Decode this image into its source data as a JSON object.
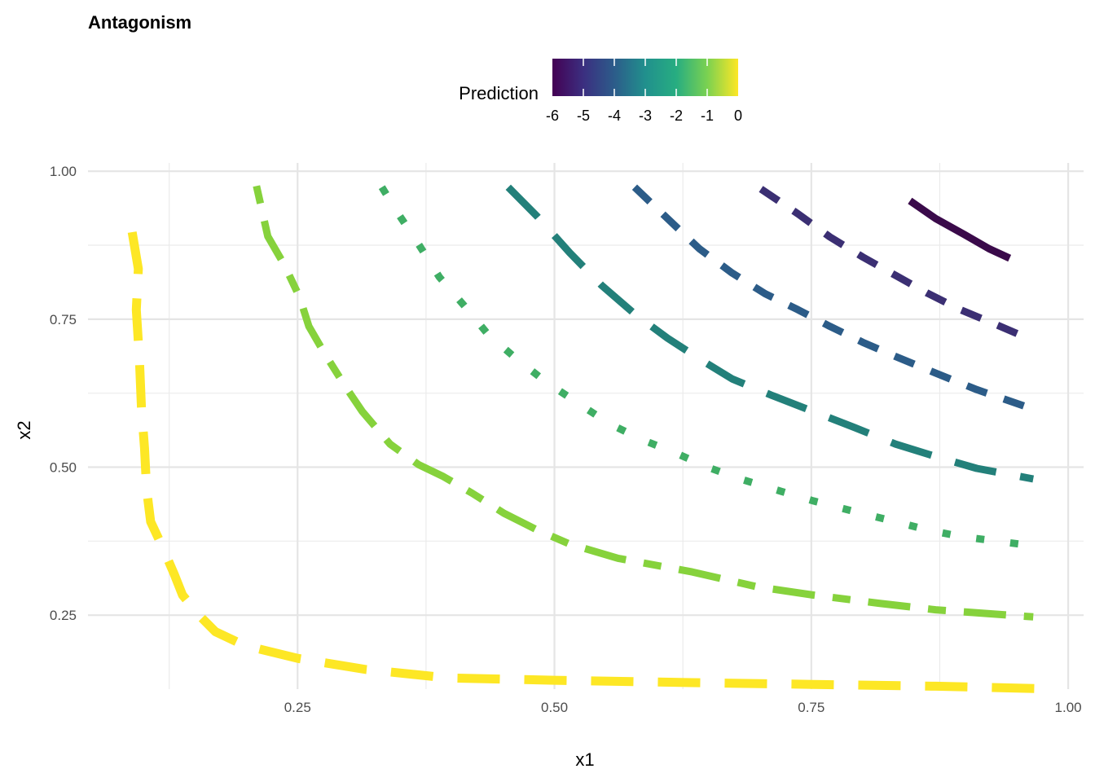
{
  "chart_data": {
    "type": "line",
    "title": "Antagonism",
    "xlabel": "x1",
    "ylabel": "x2",
    "xlim": [
      0.046,
      1.015
    ],
    "ylim": [
      0.125,
      1.014
    ],
    "xticks": [
      0.25,
      0.5,
      0.75,
      1.0
    ],
    "xtick_labels": [
      "0.25",
      "0.50",
      "0.75",
      "1.00"
    ],
    "yticks": [
      0.25,
      0.5,
      0.75,
      1.0
    ],
    "ytick_labels": [
      "0.25",
      "0.50",
      "0.75",
      "1.00"
    ],
    "grid": true,
    "legend": {
      "title": "Prediction",
      "placement": "top",
      "range": [
        -6,
        0
      ],
      "ticks": [
        -6,
        -5,
        -4,
        -3,
        -2,
        -1,
        0
      ],
      "tick_labels": [
        "-6",
        "-5",
        "-4",
        "-3",
        "-2",
        "-1",
        "0"
      ],
      "colormap": "viridis"
    },
    "series": [
      {
        "level": 0,
        "color": "#fde725",
        "linetype": "longdash",
        "x": [
          0.089,
          0.095,
          0.093,
          0.096,
          0.098,
          0.101,
          0.103,
          0.107,
          0.118,
          0.13,
          0.138,
          0.154,
          0.17,
          0.198,
          0.25,
          0.317,
          0.396,
          0.5,
          0.634,
          0.752,
          0.871,
          0.97
        ],
        "y": [
          0.897,
          0.835,
          0.766,
          0.683,
          0.601,
          0.532,
          0.463,
          0.408,
          0.367,
          0.319,
          0.284,
          0.25,
          0.222,
          0.199,
          0.177,
          0.158,
          0.144,
          0.14,
          0.136,
          0.133,
          0.13,
          0.126
        ]
      },
      {
        "level": -1,
        "color": "#86d23c",
        "linetype": "twodash",
        "x": [
          0.21,
          0.221,
          0.237,
          0.252,
          0.261,
          0.277,
          0.297,
          0.313,
          0.34,
          0.368,
          0.392,
          0.42,
          0.451,
          0.483,
          0.515,
          0.562,
          0.634,
          0.697,
          0.752,
          0.816,
          0.871,
          0.966
        ],
        "y": [
          0.975,
          0.89,
          0.842,
          0.787,
          0.738,
          0.69,
          0.635,
          0.594,
          0.539,
          0.504,
          0.484,
          0.456,
          0.422,
          0.394,
          0.37,
          0.346,
          0.323,
          0.298,
          0.284,
          0.27,
          0.259,
          0.247
        ]
      },
      {
        "level": -2,
        "color": "#3fae64",
        "linetype": "dotted",
        "x": [
          0.332,
          0.348,
          0.368,
          0.388,
          0.412,
          0.435,
          0.463,
          0.491,
          0.523,
          0.554,
          0.586,
          0.618,
          0.649,
          0.681,
          0.721,
          0.752,
          0.792,
          0.832,
          0.863,
          0.895,
          0.966
        ],
        "y": [
          0.973,
          0.928,
          0.876,
          0.821,
          0.773,
          0.725,
          0.683,
          0.645,
          0.608,
          0.573,
          0.546,
          0.524,
          0.5,
          0.48,
          0.459,
          0.443,
          0.425,
          0.408,
          0.394,
          0.383,
          0.367
        ]
      },
      {
        "level": -3,
        "color": "#23807a",
        "linetype": "longdash",
        "x": [
          0.455,
          0.483,
          0.515,
          0.546,
          0.578,
          0.61,
          0.641,
          0.673,
          0.712,
          0.752,
          0.792,
          0.832,
          0.871,
          0.911,
          0.966
        ],
        "y": [
          0.973,
          0.924,
          0.862,
          0.807,
          0.759,
          0.718,
          0.683,
          0.649,
          0.621,
          0.594,
          0.567,
          0.539,
          0.518,
          0.498,
          0.48
        ]
      },
      {
        "level": -4,
        "color": "#2c5c88",
        "linetype": "dashed",
        "x": [
          0.578,
          0.61,
          0.641,
          0.673,
          0.705,
          0.737,
          0.768,
          0.8,
          0.832,
          0.871,
          0.911,
          0.966
        ],
        "y": [
          0.973,
          0.92,
          0.869,
          0.828,
          0.793,
          0.766,
          0.738,
          0.711,
          0.687,
          0.659,
          0.631,
          0.598
        ]
      },
      {
        "level": -5,
        "color": "#3b2f73",
        "linetype": "dashed",
        "x": [
          0.701,
          0.737,
          0.768,
          0.8,
          0.832,
          0.863,
          0.895,
          0.927,
          0.966
        ],
        "y": [
          0.97,
          0.928,
          0.889,
          0.855,
          0.824,
          0.794,
          0.766,
          0.743,
          0.714
        ]
      },
      {
        "level": -6,
        "color": "#3a0a4a",
        "linetype": "solid",
        "x": [
          0.846,
          0.871,
          0.899,
          0.923,
          0.943
        ],
        "y": [
          0.95,
          0.92,
          0.893,
          0.869,
          0.853
        ]
      }
    ]
  }
}
